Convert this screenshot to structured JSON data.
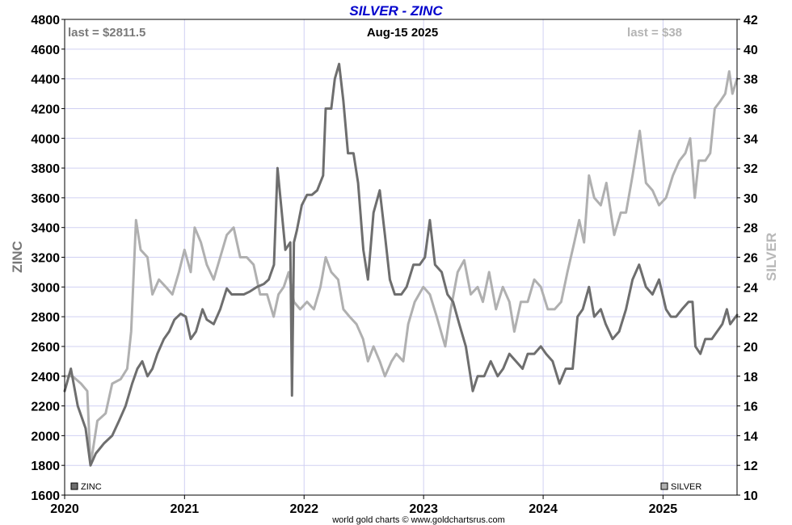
{
  "chart_data": {
    "type": "line",
    "title": "SILVER - ZINC",
    "date_label": "Aug-15  2025",
    "credit": "world gold charts © www.goldchartsrus.com",
    "left_axis": {
      "label": "ZINC",
      "range": [
        1600,
        4800
      ],
      "ticks": [
        "1600",
        "1800",
        "2000",
        "2200",
        "2400",
        "2600",
        "2800",
        "3000",
        "3200",
        "3400",
        "3600",
        "3800",
        "4000",
        "4200",
        "4400",
        "4600",
        "4800"
      ]
    },
    "right_axis": {
      "label": "SILVER",
      "range": [
        10,
        42
      ],
      "ticks": [
        "10",
        "12",
        "14",
        "16",
        "18",
        "20",
        "22",
        "24",
        "26",
        "28",
        "30",
        "32",
        "34",
        "36",
        "38",
        "40",
        "42"
      ]
    },
    "x_axis": {
      "range": [
        "2020-01-01",
        "2025-08-15"
      ],
      "ticks": [
        "2020",
        "2021",
        "2022",
        "2023",
        "2024",
        "2025"
      ]
    },
    "grid": true,
    "colors": {
      "zinc": "#6e6e6e",
      "silver": "#b0b0b0",
      "title": "#0000cc",
      "grid": "#d0d0f2",
      "frame": "#000000"
    },
    "annotations": {
      "zinc_last": "last = $2811.5",
      "silver_last": "last = $38"
    },
    "legend": [
      {
        "name": "ZINC",
        "position": "bottom-left"
      },
      {
        "name": "SILVER",
        "position": "bottom-right"
      }
    ],
    "series": [
      {
        "name": "ZINC",
        "axis": "left",
        "points": [
          [
            "2020-01-01",
            2300
          ],
          [
            "2020-01-20",
            2450
          ],
          [
            "2020-02-10",
            2200
          ],
          [
            "2020-03-05",
            2050
          ],
          [
            "2020-03-20",
            1800
          ],
          [
            "2020-04-05",
            1880
          ],
          [
            "2020-05-01",
            1950
          ],
          [
            "2020-05-25",
            2000
          ],
          [
            "2020-06-15",
            2100
          ],
          [
            "2020-07-05",
            2200
          ],
          [
            "2020-07-25",
            2350
          ],
          [
            "2020-08-10",
            2450
          ],
          [
            "2020-08-25",
            2500
          ],
          [
            "2020-09-10",
            2400
          ],
          [
            "2020-09-25",
            2450
          ],
          [
            "2020-10-10",
            2550
          ],
          [
            "2020-10-30",
            2650
          ],
          [
            "2020-11-15",
            2700
          ],
          [
            "2020-12-01",
            2780
          ],
          [
            "2020-12-20",
            2820
          ],
          [
            "2021-01-05",
            2800
          ],
          [
            "2021-01-20",
            2650
          ],
          [
            "2021-02-05",
            2700
          ],
          [
            "2021-02-25",
            2850
          ],
          [
            "2021-03-10",
            2780
          ],
          [
            "2021-03-31",
            2750
          ],
          [
            "2021-04-20",
            2850
          ],
          [
            "2021-05-10",
            2990
          ],
          [
            "2021-05-25",
            2950
          ],
          [
            "2021-06-10",
            2950
          ],
          [
            "2021-07-01",
            2950
          ],
          [
            "2021-07-20",
            2970
          ],
          [
            "2021-08-10",
            3000
          ],
          [
            "2021-08-31",
            3020
          ],
          [
            "2021-09-15",
            3050
          ],
          [
            "2021-10-01",
            3150
          ],
          [
            "2021-10-12",
            3800
          ],
          [
            "2021-10-25",
            3500
          ],
          [
            "2021-11-05",
            3250
          ],
          [
            "2021-11-20",
            3300
          ],
          [
            "2021-11-25",
            2270
          ],
          [
            "2021-12-01",
            3300
          ],
          [
            "2021-12-10",
            3380
          ],
          [
            "2021-12-25",
            3550
          ],
          [
            "2022-01-10",
            3620
          ],
          [
            "2022-01-25",
            3620
          ],
          [
            "2022-02-10",
            3650
          ],
          [
            "2022-02-28",
            3750
          ],
          [
            "2022-03-08",
            4200
          ],
          [
            "2022-03-25",
            4200
          ],
          [
            "2022-04-05",
            4400
          ],
          [
            "2022-04-18",
            4500
          ],
          [
            "2022-05-01",
            4250
          ],
          [
            "2022-05-15",
            3900
          ],
          [
            "2022-06-01",
            3900
          ],
          [
            "2022-06-15",
            3700
          ],
          [
            "2022-07-01",
            3250
          ],
          [
            "2022-07-15",
            3050
          ],
          [
            "2022-08-01",
            3500
          ],
          [
            "2022-08-20",
            3650
          ],
          [
            "2022-09-05",
            3350
          ],
          [
            "2022-09-20",
            3050
          ],
          [
            "2022-10-05",
            2950
          ],
          [
            "2022-10-25",
            2950
          ],
          [
            "2022-11-10",
            3000
          ],
          [
            "2022-12-01",
            3150
          ],
          [
            "2022-12-20",
            3150
          ],
          [
            "2023-01-05",
            3200
          ],
          [
            "2023-01-20",
            3450
          ],
          [
            "2023-02-05",
            3150
          ],
          [
            "2023-02-25",
            3100
          ],
          [
            "2023-03-15",
            2950
          ],
          [
            "2023-04-01",
            2900
          ],
          [
            "2023-04-20",
            2750
          ],
          [
            "2023-05-10",
            2600
          ],
          [
            "2023-05-31",
            2300
          ],
          [
            "2023-06-15",
            2400
          ],
          [
            "2023-07-05",
            2400
          ],
          [
            "2023-07-25",
            2500
          ],
          [
            "2023-08-15",
            2400
          ],
          [
            "2023-09-01",
            2450
          ],
          [
            "2023-09-20",
            2550
          ],
          [
            "2023-10-10",
            2500
          ],
          [
            "2023-10-30",
            2450
          ],
          [
            "2023-11-15",
            2550
          ],
          [
            "2023-12-05",
            2550
          ],
          [
            "2023-12-25",
            2600
          ],
          [
            "2024-01-10",
            2550
          ],
          [
            "2024-01-30",
            2500
          ],
          [
            "2024-02-20",
            2350
          ],
          [
            "2024-03-10",
            2450
          ],
          [
            "2024-03-31",
            2450
          ],
          [
            "2024-04-15",
            2800
          ],
          [
            "2024-05-01",
            2850
          ],
          [
            "2024-05-20",
            3000
          ],
          [
            "2024-06-05",
            2800
          ],
          [
            "2024-06-25",
            2850
          ],
          [
            "2024-07-10",
            2750
          ],
          [
            "2024-07-31",
            2650
          ],
          [
            "2024-08-20",
            2700
          ],
          [
            "2024-09-10",
            2850
          ],
          [
            "2024-09-30",
            3050
          ],
          [
            "2024-10-20",
            3150
          ],
          [
            "2024-11-10",
            3000
          ],
          [
            "2024-11-30",
            2950
          ],
          [
            "2024-12-20",
            3050
          ],
          [
            "2025-01-10",
            2850
          ],
          [
            "2025-01-25",
            2800
          ],
          [
            "2025-02-10",
            2800
          ],
          [
            "2025-02-28",
            2850
          ],
          [
            "2025-03-20",
            2900
          ],
          [
            "2025-04-01",
            2900
          ],
          [
            "2025-04-10",
            2600
          ],
          [
            "2025-04-25",
            2550
          ],
          [
            "2025-05-10",
            2650
          ],
          [
            "2025-05-30",
            2650
          ],
          [
            "2025-06-15",
            2700
          ],
          [
            "2025-07-01",
            2750
          ],
          [
            "2025-07-15",
            2850
          ],
          [
            "2025-07-25",
            2750
          ],
          [
            "2025-08-15",
            2811.5
          ]
        ]
      },
      {
        "name": "SILVER",
        "axis": "right",
        "points": [
          [
            "2020-01-01",
            18
          ],
          [
            "2020-01-25",
            18
          ],
          [
            "2020-02-20",
            17.5
          ],
          [
            "2020-03-10",
            17
          ],
          [
            "2020-03-20",
            12
          ],
          [
            "2020-04-10",
            15
          ],
          [
            "2020-05-05",
            15.5
          ],
          [
            "2020-05-25",
            17.5
          ],
          [
            "2020-06-20",
            17.8
          ],
          [
            "2020-07-10",
            18.5
          ],
          [
            "2020-07-22",
            21
          ],
          [
            "2020-08-06",
            28.5
          ],
          [
            "2020-08-20",
            26.5
          ],
          [
            "2020-09-10",
            26
          ],
          [
            "2020-09-25",
            23.5
          ],
          [
            "2020-10-15",
            24.5
          ],
          [
            "2020-11-05",
            24
          ],
          [
            "2020-11-25",
            23.5
          ],
          [
            "2020-12-15",
            25
          ],
          [
            "2021-01-01",
            26.5
          ],
          [
            "2021-01-20",
            25
          ],
          [
            "2021-02-01",
            28
          ],
          [
            "2021-02-20",
            27
          ],
          [
            "2021-03-10",
            25.5
          ],
          [
            "2021-03-31",
            24.5
          ],
          [
            "2021-04-20",
            26
          ],
          [
            "2021-05-10",
            27.5
          ],
          [
            "2021-05-31",
            28
          ],
          [
            "2021-06-20",
            26
          ],
          [
            "2021-07-10",
            26
          ],
          [
            "2021-07-31",
            25.5
          ],
          [
            "2021-08-20",
            23.5
          ],
          [
            "2021-09-10",
            23.5
          ],
          [
            "2021-09-30",
            22
          ],
          [
            "2021-10-15",
            23.5
          ],
          [
            "2021-10-31",
            24
          ],
          [
            "2021-11-15",
            25
          ],
          [
            "2021-12-01",
            23
          ],
          [
            "2021-12-20",
            22.5
          ],
          [
            "2022-01-10",
            23
          ],
          [
            "2022-01-31",
            22.5
          ],
          [
            "2022-02-20",
            24
          ],
          [
            "2022-03-08",
            26
          ],
          [
            "2022-03-25",
            25
          ],
          [
            "2022-04-15",
            24.5
          ],
          [
            "2022-05-01",
            22.5
          ],
          [
            "2022-05-20",
            22
          ],
          [
            "2022-06-10",
            21.5
          ],
          [
            "2022-06-30",
            20.5
          ],
          [
            "2022-07-15",
            19
          ],
          [
            "2022-08-01",
            20
          ],
          [
            "2022-08-20",
            19
          ],
          [
            "2022-09-05",
            18
          ],
          [
            "2022-09-25",
            19
          ],
          [
            "2022-10-10",
            19.5
          ],
          [
            "2022-10-31",
            19
          ],
          [
            "2022-11-15",
            21.5
          ],
          [
            "2022-12-05",
            23
          ],
          [
            "2022-12-31",
            24
          ],
          [
            "2023-01-20",
            23.5
          ],
          [
            "2023-02-10",
            22
          ],
          [
            "2023-03-08",
            20
          ],
          [
            "2023-03-25",
            22.5
          ],
          [
            "2023-04-15",
            25
          ],
          [
            "2023-05-05",
            25.8
          ],
          [
            "2023-05-25",
            23.5
          ],
          [
            "2023-06-15",
            24
          ],
          [
            "2023-07-01",
            23
          ],
          [
            "2023-07-20",
            25
          ],
          [
            "2023-08-10",
            22.5
          ],
          [
            "2023-08-31",
            24
          ],
          [
            "2023-09-20",
            23
          ],
          [
            "2023-10-05",
            21
          ],
          [
            "2023-10-25",
            23
          ],
          [
            "2023-11-15",
            23
          ],
          [
            "2023-12-05",
            24.5
          ],
          [
            "2023-12-25",
            24
          ],
          [
            "2024-01-15",
            22.5
          ],
          [
            "2024-02-05",
            22.5
          ],
          [
            "2024-02-25",
            23
          ],
          [
            "2024-03-15",
            25
          ],
          [
            "2024-04-05",
            27
          ],
          [
            "2024-04-20",
            28.5
          ],
          [
            "2024-05-05",
            27
          ],
          [
            "2024-05-20",
            31.5
          ],
          [
            "2024-06-05",
            30
          ],
          [
            "2024-06-25",
            29.5
          ],
          [
            "2024-07-12",
            31
          ],
          [
            "2024-08-05",
            27.5
          ],
          [
            "2024-08-25",
            29
          ],
          [
            "2024-09-10",
            29
          ],
          [
            "2024-09-30",
            31.5
          ],
          [
            "2024-10-22",
            34.5
          ],
          [
            "2024-11-10",
            31
          ],
          [
            "2024-11-30",
            30.5
          ],
          [
            "2024-12-20",
            29.5
          ],
          [
            "2025-01-10",
            30
          ],
          [
            "2025-01-31",
            31.5
          ],
          [
            "2025-02-20",
            32.5
          ],
          [
            "2025-03-10",
            33
          ],
          [
            "2025-03-25",
            34
          ],
          [
            "2025-04-08",
            30
          ],
          [
            "2025-04-20",
            32.5
          ],
          [
            "2025-05-10",
            32.5
          ],
          [
            "2025-05-25",
            33
          ],
          [
            "2025-06-08",
            36
          ],
          [
            "2025-06-25",
            36.5
          ],
          [
            "2025-07-10",
            37
          ],
          [
            "2025-07-22",
            38.5
          ],
          [
            "2025-08-01",
            37
          ],
          [
            "2025-08-15",
            38
          ]
        ]
      }
    ]
  }
}
